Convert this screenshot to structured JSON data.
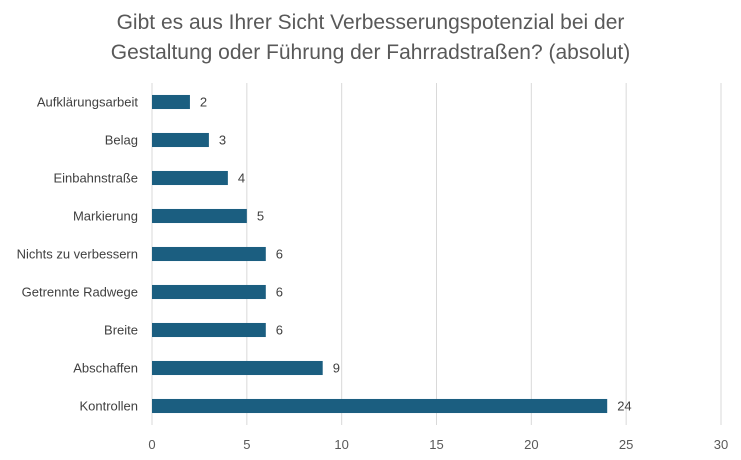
{
  "chart_data": {
    "type": "bar",
    "orientation": "horizontal",
    "title": "Gibt es aus Ihrer Sicht Verbesserungspotenzial bei der Gestaltung oder Führung der Fahrradstraßen? (absolut)",
    "title_lines": [
      "Gibt es aus Ihrer Sicht Verbesserungspotenzial bei der",
      "Gestaltung oder Führung der Fahrradstraßen? (absolut)"
    ],
    "categories": [
      "Aufklärungsarbeit",
      "Belag",
      "Einbahnstraße",
      "Markierung",
      "Nichts zu verbessern",
      "Getrennte Radwege",
      "Breite",
      "Abschaffen",
      "Kontrollen"
    ],
    "values": [
      2,
      3,
      4,
      5,
      6,
      6,
      6,
      9,
      24
    ],
    "xlabel": "",
    "ylabel": "",
    "xlim": [
      0,
      30
    ],
    "xticks": [
      0,
      5,
      10,
      15,
      20,
      25,
      30
    ],
    "grid": "vertical",
    "legend": "none",
    "data_labels": true,
    "bar_color": "#1b5e80"
  }
}
